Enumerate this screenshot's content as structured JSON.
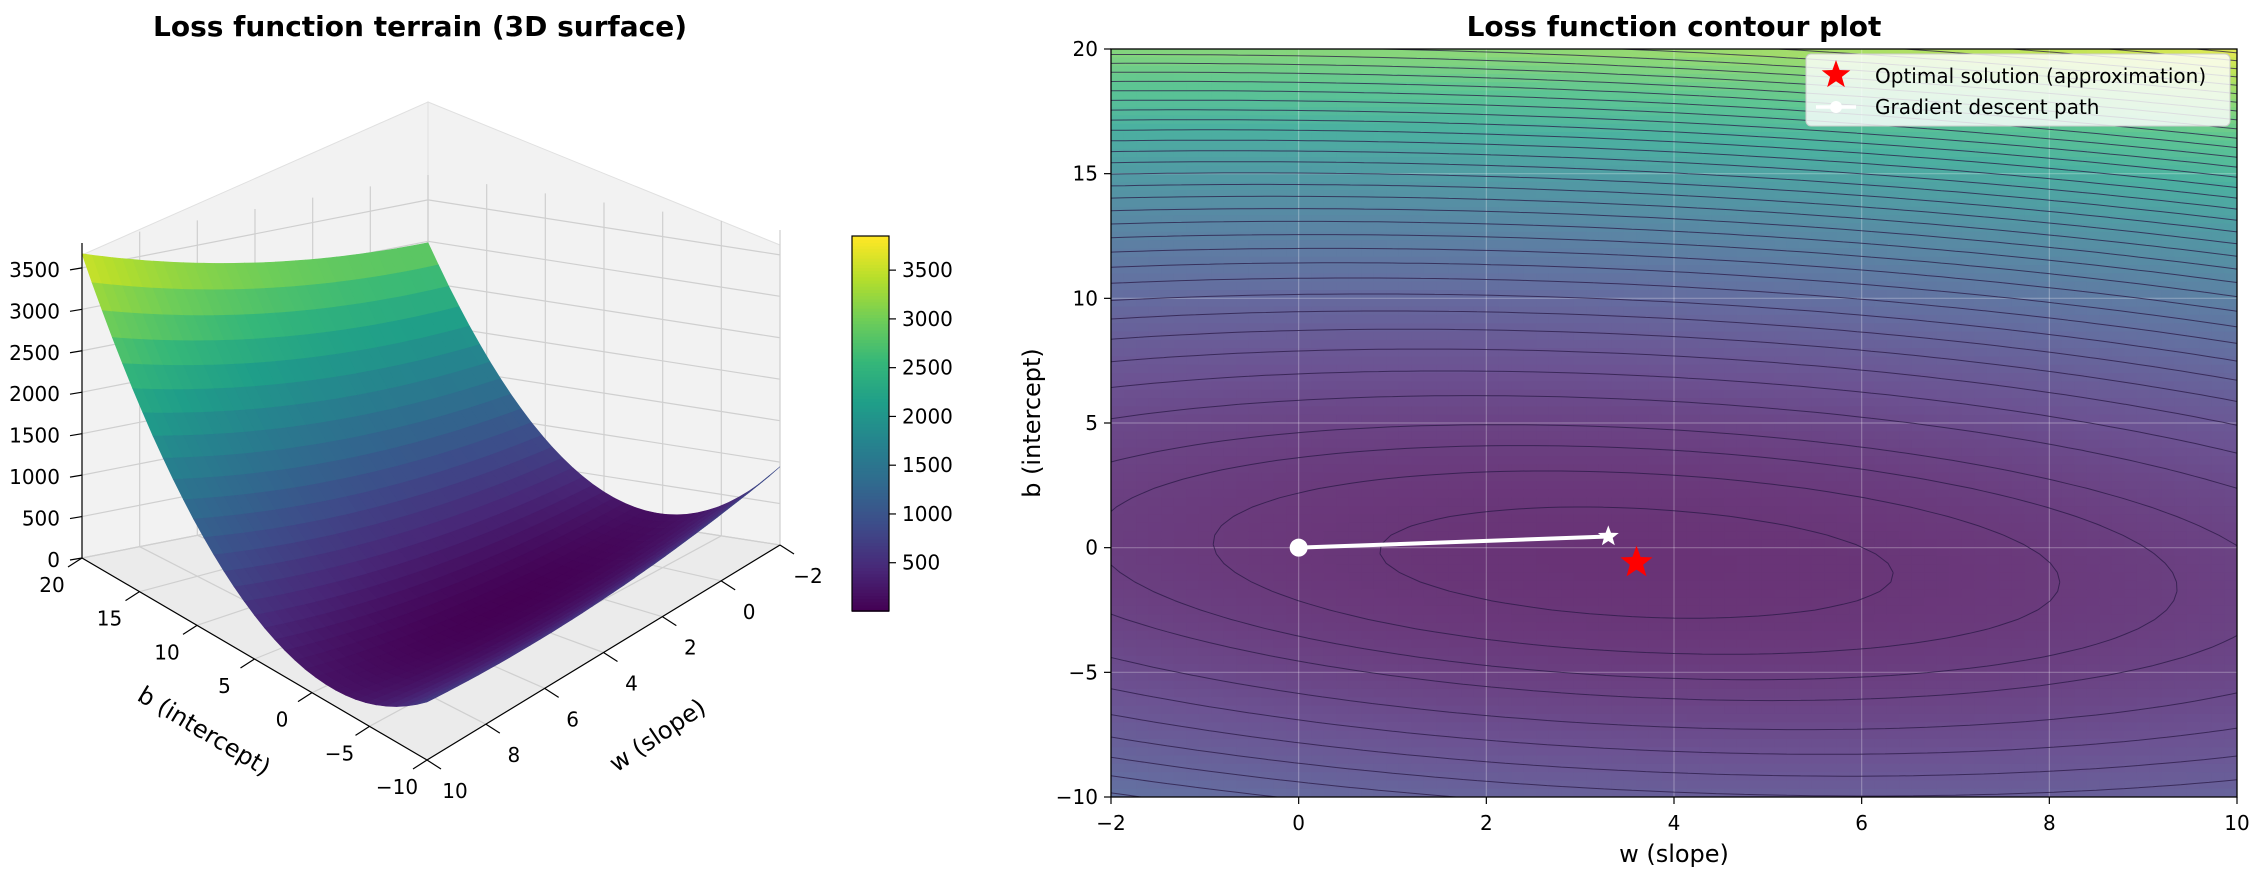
{
  "chart_data": [
    {
      "type": "surface3d",
      "title": "Loss function terrain (3D surface)",
      "xlabel": "w (slope)",
      "ylabel": "b (intercept)",
      "zlabel": "",
      "xlim": [
        -2,
        10
      ],
      "ylim": [
        -10,
        20
      ],
      "zlim": [
        0,
        3800
      ],
      "x_ticks": [
        -2,
        0,
        2,
        4,
        6,
        8,
        10
      ],
      "y_ticks": [
        -10,
        -5,
        0,
        5,
        10,
        15,
        20
      ],
      "z_ticks": [
        0,
        500,
        1000,
        1500,
        2000,
        2500,
        3000,
        3500
      ],
      "colorbar": {
        "ticks": [
          500,
          1000,
          1500,
          2000,
          2500,
          3000,
          3500
        ],
        "range": [
          5,
          3850
        ]
      },
      "surface_corners": [
        {
          "w": -2,
          "b": -10,
          "loss": 850
        },
        {
          "w": -2,
          "b": 20,
          "loss": 2950
        },
        {
          "w": 10,
          "b": 20,
          "loss": 3700
        },
        {
          "w": 10,
          "b": -10,
          "loss": 750
        }
      ],
      "colormap": "viridis",
      "grid": true
    },
    {
      "type": "contour",
      "title": "Loss function contour plot",
      "xlabel": "w (slope)",
      "ylabel": "b (intercept)",
      "xlim": [
        -2,
        10
      ],
      "ylim": [
        -10,
        20
      ],
      "x_ticks": [
        -2,
        0,
        2,
        4,
        6,
        8,
        10
      ],
      "y_ticks": [
        -10,
        -5,
        0,
        5,
        10,
        15,
        20
      ],
      "colormap": "viridis",
      "grid": true,
      "legend_position": "top-right",
      "series": [
        {
          "name": "Optimal solution (approximation)",
          "kind": "marker",
          "marker": "star",
          "color": "#ff0000",
          "points": [
            {
              "x": 3.6,
              "y": -0.6
            }
          ]
        },
        {
          "name": "Gradient descent path",
          "kind": "line",
          "color": "#ffffff",
          "points": [
            {
              "x": 0,
              "y": 0
            },
            {
              "x": 3.3,
              "y": 0.45
            }
          ]
        }
      ]
    }
  ],
  "colors": {
    "optimal_marker": "#ff0000",
    "path_line": "#ffffff"
  }
}
